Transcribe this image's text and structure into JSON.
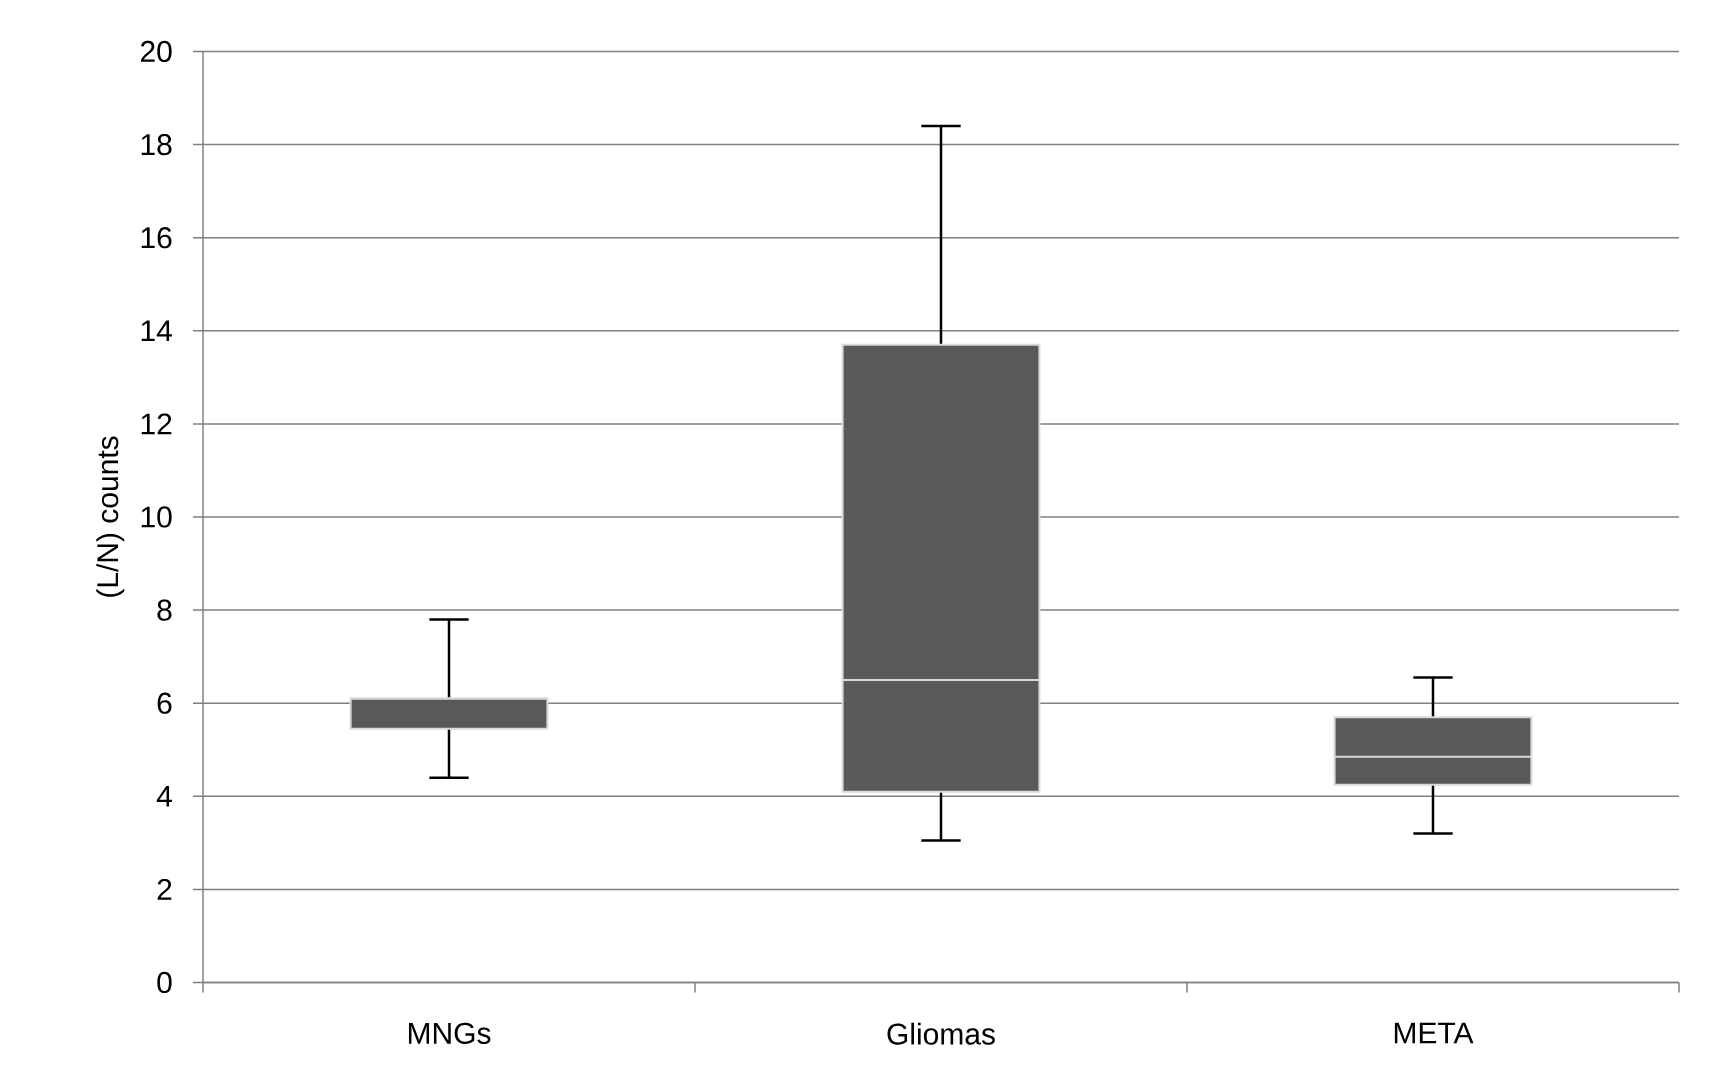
{
  "chart_data": {
    "type": "box",
    "ylabel": "(L/N) counts",
    "categories": [
      "MNGs",
      "Gliomas",
      "META"
    ],
    "boxes": [
      {
        "low": 4.4,
        "q1": 5.45,
        "median": 6.1,
        "q3": 6.1,
        "high": 7.8
      },
      {
        "low": 3.05,
        "q1": 4.1,
        "median": 6.5,
        "q3": 13.7,
        "high": 18.4
      },
      {
        "low": 3.2,
        "q1": 4.25,
        "median": 4.85,
        "q3": 5.7,
        "high": 6.55
      }
    ],
    "color": "#595959",
    "ylim": [
      0,
      20
    ],
    "yticks": [
      0,
      2,
      4,
      6,
      8,
      10,
      12,
      14,
      16,
      18,
      20
    ],
    "grid": "y"
  }
}
